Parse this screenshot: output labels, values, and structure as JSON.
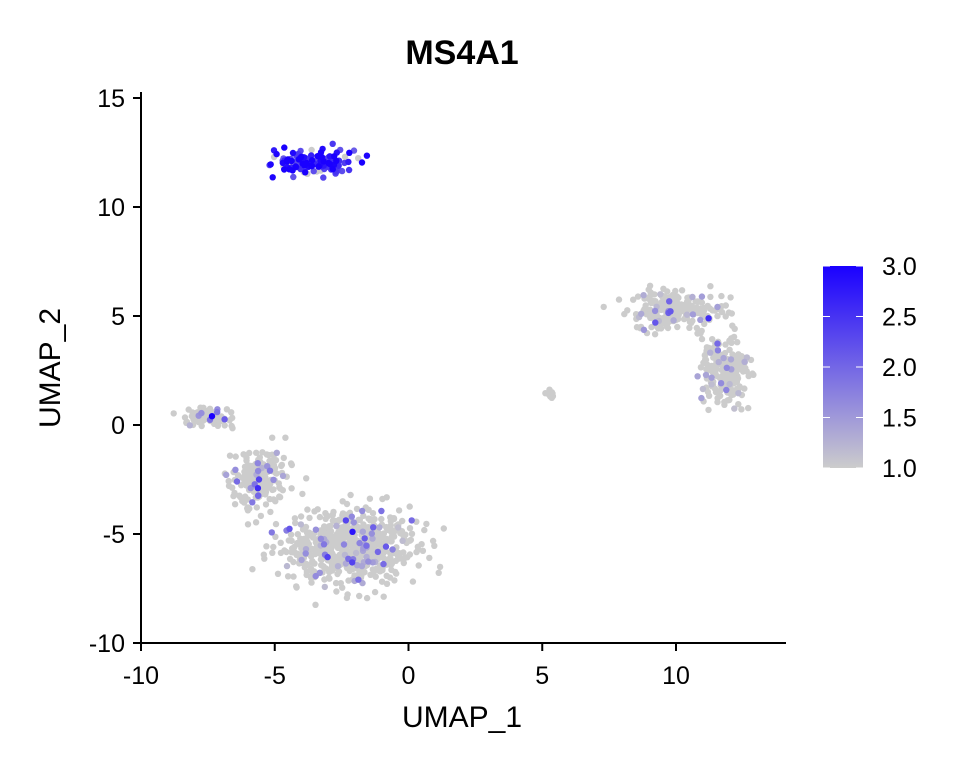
{
  "chart_data": {
    "type": "scatter",
    "title": "MS4A1",
    "xlabel": "UMAP_1",
    "ylabel": "UMAP_2",
    "xlim": [
      -10,
      14
    ],
    "ylim": [
      -10,
      15
    ],
    "x_ticks": [
      -10,
      -5,
      0,
      5,
      10
    ],
    "y_ticks": [
      -10,
      -5,
      0,
      5,
      10,
      15
    ],
    "grid": false,
    "legend": {
      "type": "colorbar",
      "position": "right",
      "min": 1.0,
      "max": 3.0,
      "ticks": [
        "3.0",
        "2.5",
        "2.0",
        "1.5",
        "1.0"
      ],
      "low_color": "#CCCCCC",
      "high_color": "#1A00FF"
    },
    "clusters": [
      {
        "center": [
          -3.6,
          12.0
        ],
        "spread": [
          1.4,
          0.55
        ],
        "expr_mean": 2.1,
        "expr_share": 0.85
      },
      {
        "center": [
          -7.6,
          0.3
        ],
        "spread": [
          0.9,
          0.45
        ],
        "expr_mean": 1.1,
        "expr_share": 0.06
      },
      {
        "center": [
          -2.2,
          -5.6
        ],
        "spread": [
          2.2,
          1.6
        ],
        "expr_mean": 1.1,
        "expr_share": 0.08
      },
      {
        "center": [
          -5.6,
          -2.5
        ],
        "spread": [
          0.9,
          1.2
        ],
        "expr_mean": 1.1,
        "expr_share": 0.08
      },
      {
        "center": [
          10.0,
          5.3
        ],
        "spread": [
          1.6,
          0.8
        ],
        "expr_mean": 1.1,
        "expr_share": 0.1
      },
      {
        "center": [
          11.8,
          2.5
        ],
        "spread": [
          0.8,
          1.4
        ],
        "expr_mean": 1.1,
        "expr_share": 0.1
      },
      {
        "center": [
          5.3,
          1.4
        ],
        "spread": [
          0.12,
          0.12
        ],
        "expr_mean": 1.0,
        "expr_share": 0.0
      }
    ]
  }
}
